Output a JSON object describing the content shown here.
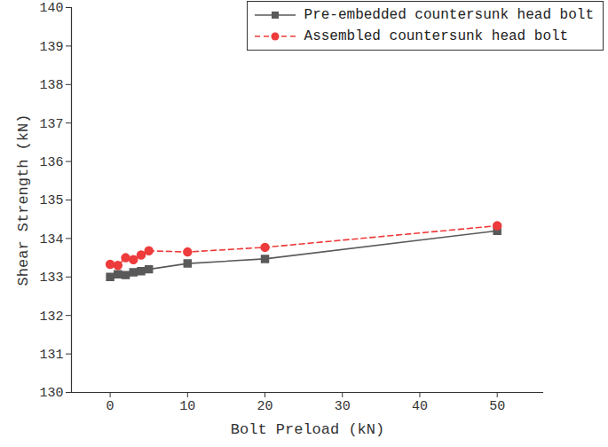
{
  "chart_data": {
    "type": "line",
    "x_label": "Bolt Preload (kN)",
    "y_label": "Shear Strength (kN)",
    "x": [
      0,
      1,
      2,
      3,
      4,
      5,
      10,
      20,
      50
    ],
    "series": [
      {
        "name": "Pre-embedded countersunk head bolt",
        "color": "#595959",
        "marker": "square",
        "line_style": "solid",
        "values": [
          133.0,
          133.07,
          133.05,
          133.12,
          133.15,
          133.2,
          133.35,
          133.47,
          134.2
        ]
      },
      {
        "name": "Assembled countersunk head bolt",
        "color": "#ee3b3b",
        "marker": "circle",
        "line_style": "dashed",
        "values": [
          133.33,
          133.3,
          133.5,
          133.45,
          133.57,
          133.68,
          133.65,
          133.77,
          134.33
        ]
      }
    ],
    "xlim": [
      -5,
      56
    ],
    "xticks": [
      0,
      10,
      20,
      30,
      40,
      50
    ],
    "ylim": [
      130,
      140
    ],
    "yticks": [
      130,
      131,
      132,
      133,
      134,
      135,
      136,
      137,
      138,
      139,
      140
    ],
    "grid": false,
    "legend": "upper right"
  }
}
